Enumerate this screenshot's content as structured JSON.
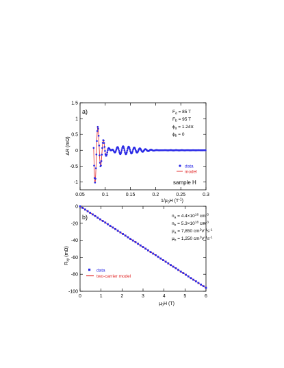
{
  "chart_data": [
    {
      "panel_label": "a)",
      "type": "line",
      "xlabel_main": "1/μ",
      "xlabel_sub": "0",
      "xlabel_rest": "H (T",
      "xlabel_sup": "-1",
      "xlabel_close": ")",
      "ylabel": "ΔR (mΩ)",
      "xlim": [
        0.05,
        0.3
      ],
      "ylim": [
        -1.25,
        1.5
      ],
      "xticks": [
        "0.05",
        "0.1",
        "0.15",
        "0.2",
        "0.25",
        "0.3"
      ],
      "yticks": [
        "-1",
        "-0.5",
        "0",
        "0.5",
        "1",
        "1.5"
      ],
      "annotations": [
        "F",
        "a",
        " = 85 T",
        "F",
        "b",
        " = 95 T",
        "ϕ",
        "a",
        " = 1.24π",
        "ϕ",
        "b",
        " = 0"
      ],
      "text_label": "sample H",
      "legend": {
        "placement": "bottom-right",
        "entries": [
          "data",
          "model"
        ]
      },
      "model": {
        "Fa": 85,
        "Fb": 95,
        "phia": 1.24,
        "phib": 0,
        "amplitude_start": 1.2,
        "x_start": 0.077
      },
      "series": [
        {
          "name": "data",
          "color": "#2a2ae6",
          "marker": "circle"
        },
        {
          "name": "model",
          "color": "#e02020",
          "marker": "line"
        }
      ]
    },
    {
      "panel_label": "b)",
      "type": "line",
      "xlabel": "μ",
      "xlabel_sub": "0",
      "xlabel_rest": "H (T)",
      "ylabel": "R",
      "ylabel_sub": "xy",
      "ylabel_rest": " (mΩ)",
      "xlim": [
        0,
        6
      ],
      "ylim": [
        -100,
        0
      ],
      "xticks": [
        "0",
        "1",
        "2",
        "3",
        "4",
        "5",
        "6"
      ],
      "yticks": [
        "0",
        "-20",
        "-40",
        "-60",
        "-80",
        "-100"
      ],
      "annotations": [
        [
          "n",
          "a",
          " = 4.4×10",
          "18",
          " cm",
          "-3"
        ],
        [
          "n",
          "b",
          " = 5.3×10",
          "18",
          " cm",
          "-3"
        ],
        [
          "μ",
          "a",
          " = 7,850 cm",
          "2",
          "V",
          "-1",
          "s",
          "-1"
        ],
        [
          "μ",
          "b",
          " = 1,250 cm",
          "2",
          "V",
          "-1",
          "s",
          "-1"
        ]
      ],
      "legend": {
        "placement": "bottom-left",
        "entries": [
          "data",
          "two-carrier model"
        ]
      },
      "x": [
        0,
        0.5,
        1,
        1.5,
        2,
        2.5,
        3,
        3.5,
        4,
        4.5,
        5,
        5.5,
        6
      ],
      "y": [
        0,
        -8,
        -16,
        -24,
        -32,
        -40,
        -48,
        -56,
        -64,
        -72,
        -80,
        -88,
        -96
      ],
      "series": [
        {
          "name": "data",
          "color": "#2a2ae6",
          "marker": "square"
        },
        {
          "name": "two-carrier model",
          "color": "#e02020",
          "marker": "line"
        }
      ]
    }
  ]
}
